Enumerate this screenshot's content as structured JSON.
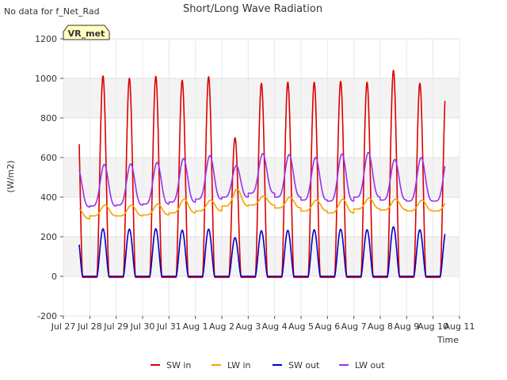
{
  "chart_data": {
    "type": "line",
    "title": "Short/Long Wave Radiation",
    "note": "No data for f_Net_Rad",
    "badge": "VR_met",
    "ylabel": "(W/m2)",
    "xlabel": "Time",
    "ylim": [
      -200,
      1200
    ],
    "yticks": [
      -200,
      0,
      200,
      400,
      600,
      800,
      1000,
      1200
    ],
    "xlim": [
      0,
      15
    ],
    "xticks": [
      {
        "pos": 0,
        "label": "Jul 27"
      },
      {
        "pos": 1,
        "label": "Jul 28"
      },
      {
        "pos": 2,
        "label": "Jul 29"
      },
      {
        "pos": 3,
        "label": "Jul 30"
      },
      {
        "pos": 4,
        "label": "Jul 31"
      },
      {
        "pos": 5,
        "label": "Aug 1"
      },
      {
        "pos": 6,
        "label": "Aug 2"
      },
      {
        "pos": 7,
        "label": "Aug 3"
      },
      {
        "pos": 8,
        "label": "Aug 4"
      },
      {
        "pos": 9,
        "label": "Aug 5"
      },
      {
        "pos": 10,
        "label": "Aug 6"
      },
      {
        "pos": 11,
        "label": "Aug 7"
      },
      {
        "pos": 12,
        "label": "Aug 8"
      },
      {
        "pos": 13,
        "label": "Aug 9"
      },
      {
        "pos": 14,
        "label": "Aug 10"
      },
      {
        "pos": 15,
        "label": "Aug 11"
      }
    ],
    "x_start": 0.6,
    "x_end": 14.45,
    "legend_position": "bottom",
    "series": [
      {
        "name": "SW in",
        "color": "#dd0000",
        "daily_peak": [
          1005,
          1012,
          1000,
          1010,
          990,
          1008,
          700,
          975,
          980,
          980,
          985,
          980,
          1040,
          975
        ],
        "night_value": -5
      },
      {
        "name": "LW in",
        "color": "#f5a300",
        "daily_peak": [
          340,
          360,
          360,
          365,
          390,
          385,
          440,
          405,
          400,
          385,
          390,
          395,
          390,
          385
        ],
        "daily_min": [
          290,
          305,
          305,
          310,
          320,
          330,
          355,
          360,
          345,
          330,
          320,
          340,
          335,
          330
        ]
      },
      {
        "name": "SW out",
        "color": "#0000cc",
        "daily_peak": [
          240,
          240,
          238,
          240,
          233,
          238,
          195,
          230,
          232,
          235,
          238,
          235,
          250,
          235
        ],
        "night_value": 0
      },
      {
        "name": "LW out",
        "color": "#9933ee",
        "daily_peak": [
          545,
          565,
          568,
          575,
          595,
          610,
          560,
          620,
          615,
          600,
          618,
          625,
          590,
          600
        ],
        "daily_min": [
          350,
          355,
          360,
          365,
          375,
          390,
          400,
          420,
          400,
          385,
          380,
          400,
          385,
          380
        ]
      }
    ]
  }
}
